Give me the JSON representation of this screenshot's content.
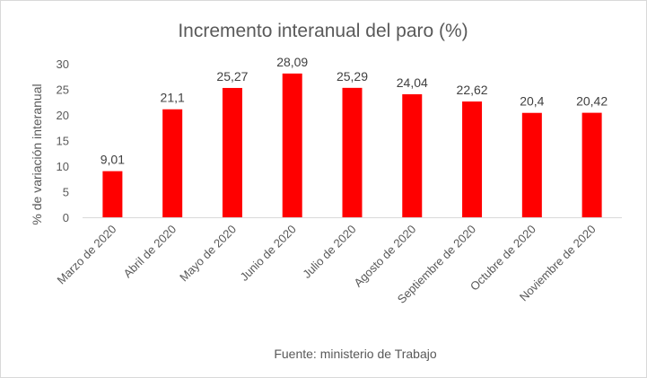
{
  "chart_data": {
    "type": "bar",
    "title": "Incremento interanual del paro  (%)",
    "ylabel": "% de variación interanual",
    "xlabel": "",
    "source": "Fuente: ministerio de Trabajo",
    "categories": [
      "Marzo de 2020",
      "Abril de 2020",
      "Mayo de 2020",
      "Junio de 2020",
      "Julio de 2020",
      "Agosto de 2020",
      "Septiembre de 2020",
      "Octubre de 2020",
      "Noviembre de 2020"
    ],
    "values": [
      9.01,
      21.1,
      25.27,
      28.09,
      25.29,
      24.04,
      22.62,
      20.4,
      20.42
    ],
    "data_labels": [
      "9,01",
      "21,1",
      "25,27",
      "28,09",
      "25,29",
      "24,04",
      "22,62",
      "20,4",
      "20,42"
    ],
    "yticks": [
      0,
      5,
      10,
      15,
      20,
      25,
      30
    ],
    "ylim": [
      0,
      30
    ],
    "grid": false,
    "bar_color": "#ff0000"
  }
}
